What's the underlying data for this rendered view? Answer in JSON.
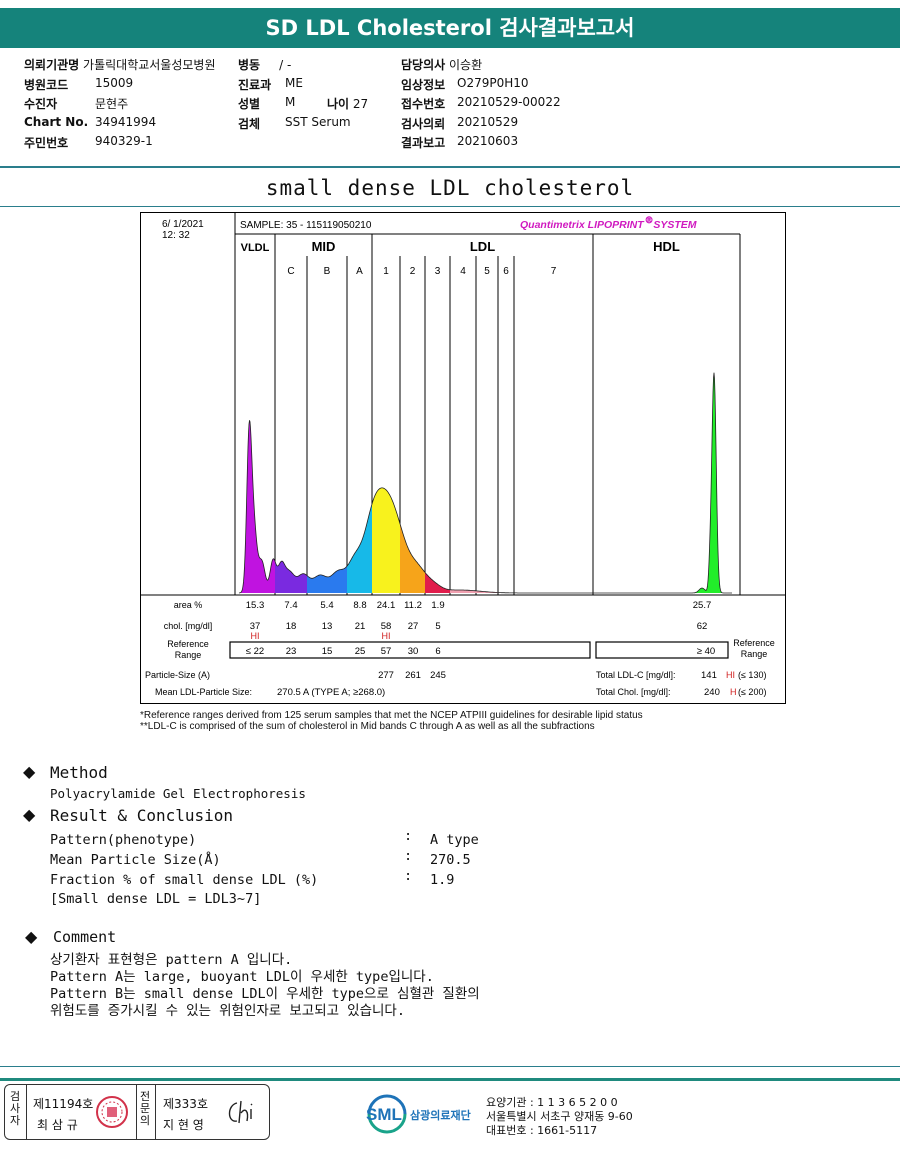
{
  "header": {
    "title": "SD LDL Cholesterol 검사결과보고서"
  },
  "info": {
    "hospital_label": "의뢰기관명",
    "hospital": "가톨릭대학교서울성모병원",
    "ward_label": "병동",
    "ward": "/ -",
    "doctor_label": "담당의사",
    "doctor": "이승환",
    "code_label": "병원코드",
    "code": "15009",
    "dept_label": "진료과",
    "dept": "ME",
    "clinical_label": "임상정보",
    "clinical": "O279P0H10",
    "patient_label": "수진자",
    "patient": "문현주",
    "sex_label": "성별",
    "sex": "M",
    "age_label": "나이",
    "age": "27",
    "receipt_label": "접수번호",
    "receipt": "20210529-00022",
    "chart_label": "Chart No.",
    "chart": "34941994",
    "specimen_label": "검체",
    "specimen": "SST Serum",
    "request_label": "검사의뢰",
    "request": "20210529",
    "id_label": "주민번호",
    "id": "940329-1",
    "report_label": "결과보고",
    "report": "20210603"
  },
  "page_title": "small dense LDL cholesterol",
  "chart_data": {
    "type": "area",
    "datetime": [
      "6/ 1/2021",
      "12: 32"
    ],
    "sample": "SAMPLE:   35 - 115119050210",
    "brand": "Quantimetrix LIPOPRINT",
    "brand_suffix": "SYSTEM",
    "groups": [
      "VLDL",
      "MID",
      "LDL",
      "HDL"
    ],
    "bands": [
      "C",
      "B",
      "A",
      "1",
      "2",
      "3",
      "4",
      "5",
      "6",
      "7"
    ],
    "fractions": [
      "VLDL",
      "C",
      "B",
      "A",
      "1",
      "2",
      "3",
      "4",
      "5",
      "6",
      "7",
      "HDL"
    ],
    "colors": [
      "#c013e0",
      "#7a2ae0",
      "#2a7aee",
      "#17b9e8",
      "#f8f21d",
      "#f6a41a",
      "#e11d4c",
      "#f0a0b0",
      "#f0a0b0",
      "#f0a0b0",
      "#f0a0b0",
      "#22ee2a"
    ],
    "row_labels": {
      "area": "area %",
      "chol": "chol. [mg/dl]",
      "ref": "Reference Range",
      "particle": "Particle-Size (A)",
      "mean": "Mean LDL-Particle Size:"
    },
    "area_pct": {
      "VLDL": "15.3",
      "C": "7.4",
      "B": "5.4",
      "A": "8.8",
      "1": "24.1",
      "2": "11.2",
      "3": "1.9",
      "HDL": "25.7"
    },
    "chol_mgdl": {
      "VLDL": "37",
      "C": "18",
      "B": "13",
      "A": "21",
      "1": "58",
      "2": "27",
      "3": "5",
      "HDL": "62"
    },
    "hi_flag": "HI",
    "hi_fractions": [
      "VLDL",
      "1"
    ],
    "reference": {
      "VLDL": "≤ 22",
      "C": "23",
      "B": "15",
      "A": "25",
      "1": "57",
      "2": "30",
      "3": "6",
      "HDL": "≥ 40"
    },
    "particle_size": {
      "1": "277",
      "2": "261",
      "3": "245"
    },
    "mean_particle": "270.5 A   (TYPE A; ≥268.0)",
    "total_ldl_label": "Total LDL-C [mg/dl]:",
    "total_ldl": "141",
    "total_ldl_flag": "HI",
    "total_ldl_ref": "(≤ 130)",
    "total_chol_label": "Total Chol. [mg/dl]:",
    "total_chol": "240",
    "total_chol_flag": "H",
    "total_chol_ref": "(≤ 200)",
    "footnotes": [
      "*Reference ranges derived from 125 serum samples that met the NCEP ATPIII guidelines for desirable lipid status",
      "**LDL-C is comprised of the sum of cholesterol in Mid bands C through A as well as all the subfractions"
    ]
  },
  "method": {
    "heading": "Method",
    "text": "Polyacrylamide Gel Electrophoresis"
  },
  "result": {
    "heading": "Result & Conclusion",
    "rows": [
      {
        "label": "Pattern(phenotype)",
        "value": "A type"
      },
      {
        "label": "Mean Particle Size(Å)",
        "value": "270.5"
      },
      {
        "label": "Fraction % of small dense LDL (%)",
        "value": "1.9"
      }
    ],
    "note": "[Small dense LDL = LDL3~7]"
  },
  "comment": {
    "heading": "Comment",
    "lines": [
      "상기환자 표현형은 pattern A 입니다.",
      "Pattern A는 large, buoyant LDL이 우세한 type입니다.",
      "Pattern B는 small dense LDL이 우세한 type으로 심혈관 질환의",
      "위험도를 증가시킬 수 있는 위험인자로 보고되고 있습니다."
    ]
  },
  "footer": {
    "inspector_label": "검사자",
    "inspector_no": "제11194호",
    "inspector_name": "최 삼 규",
    "specialist_label": "전문의",
    "specialist_no": "제333호",
    "specialist_name": "지 현 영",
    "org": "삼광의료재단",
    "logo": "SML",
    "addr": [
      "요양기관 : 1 1 3 6 5 2 0 0",
      "서울특별시 서초구 양재동 9-60",
      "대표번호 : 1661-5117"
    ]
  }
}
